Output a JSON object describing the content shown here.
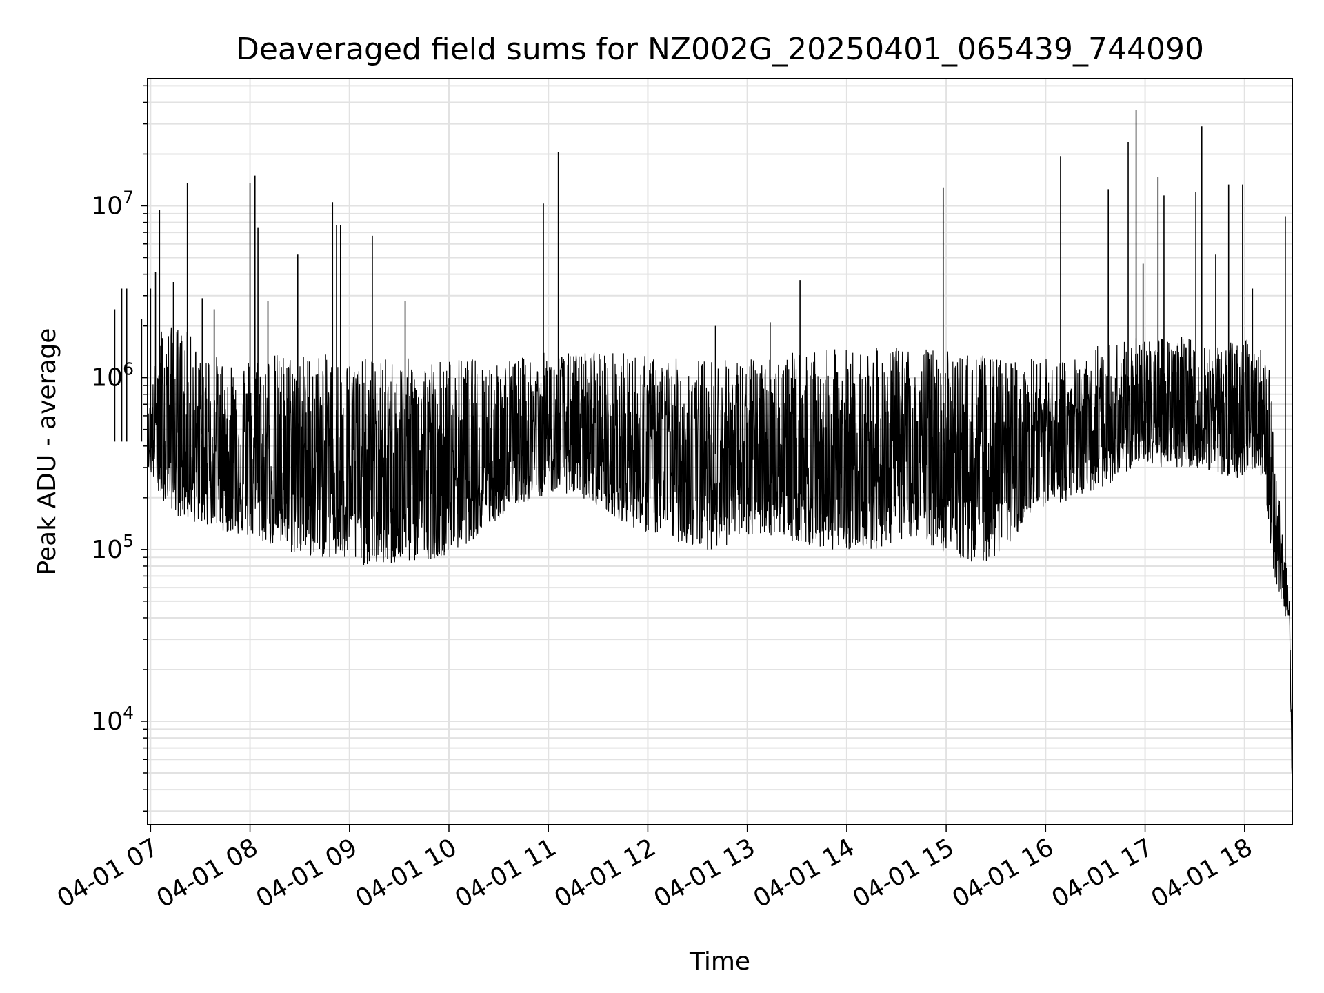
{
  "chart_data": {
    "type": "line",
    "title": "Deaveraged field sums for NZ002G_20250401_065439_744090",
    "xlabel": "Time",
    "ylabel": "Peak ADU - average",
    "yscale": "log",
    "ylim": [
      2500,
      55000000
    ],
    "xlim": [
      "2025-04-01 06:58",
      "2025-04-01 18:29"
    ],
    "x_ticks": [
      "04-01 07",
      "04-01 08",
      "04-01 09",
      "04-01 10",
      "04-01 11",
      "04-01 12",
      "04-01 13",
      "04-01 14",
      "04-01 15",
      "04-01 16",
      "04-01 17",
      "04-01 18"
    ],
    "y_ticks": [
      {
        "base": "10",
        "exp": "4",
        "value": 10000
      },
      {
        "base": "10",
        "exp": "5",
        "value": 100000
      },
      {
        "base": "10",
        "exp": "6",
        "value": 1000000
      },
      {
        "base": "10",
        "exp": "7",
        "value": 10000000
      }
    ],
    "grid": true,
    "legend": "none",
    "line_color": "#000000",
    "series": [
      {
        "x_hours": [
          6.97,
          7.1,
          7.3,
          7.5,
          7.7,
          7.9,
          8.1,
          8.3,
          8.5,
          8.7,
          8.9,
          9.1,
          9.3,
          9.5,
          9.7,
          9.9,
          10.1,
          10.3,
          10.5,
          10.7,
          10.9,
          11.1,
          11.3,
          11.5,
          11.7,
          11.9,
          12.1,
          12.3,
          12.5,
          12.7,
          12.9,
          13.1,
          13.3,
          13.5,
          13.7,
          13.9,
          14.1,
          14.3,
          14.5,
          14.7,
          14.9,
          15.1,
          15.3,
          15.5,
          15.7,
          15.9,
          16.1,
          16.3,
          16.5,
          16.7,
          16.9,
          17.1,
          17.3,
          17.5,
          17.7,
          17.9,
          18.1,
          18.2,
          18.25,
          18.3,
          18.35,
          18.4,
          18.45,
          18.48
        ],
        "upper": [
          600000,
          2000000,
          2000000,
          1600000,
          1300000,
          1300000,
          1400000,
          1400000,
          1400000,
          1400000,
          1300000,
          1300000,
          1300000,
          1300000,
          1300000,
          1300000,
          1300000,
          1300000,
          1300000,
          1300000,
          1400000,
          1400000,
          1400000,
          1500000,
          1400000,
          1400000,
          1300000,
          1300000,
          1300000,
          1300000,
          1300000,
          1300000,
          1400000,
          1400000,
          1400000,
          1500000,
          1500000,
          1500000,
          1500000,
          1500000,
          1500000,
          1400000,
          1400000,
          1300000,
          1300000,
          1300000,
          1300000,
          1300000,
          1600000,
          1600000,
          1700000,
          1700000,
          1800000,
          1700000,
          1600000,
          1600000,
          1700000,
          1500000,
          1100000,
          500000,
          200000,
          90000,
          70000,
          5000
        ],
        "lower": [
          300000,
          200000,
          150000,
          140000,
          130000,
          120000,
          110000,
          100000,
          90000,
          90000,
          85000,
          80000,
          80000,
          80000,
          85000,
          90000,
          100000,
          120000,
          150000,
          180000,
          200000,
          220000,
          200000,
          180000,
          150000,
          130000,
          120000,
          110000,
          100000,
          100000,
          110000,
          120000,
          120000,
          110000,
          100000,
          100000,
          100000,
          100000,
          110000,
          120000,
          100000,
          90000,
          80000,
          90000,
          120000,
          160000,
          180000,
          200000,
          220000,
          250000,
          300000,
          300000,
          300000,
          300000,
          280000,
          250000,
          300000,
          250000,
          120000,
          70000,
          50000,
          40000,
          40000,
          3000
        ],
        "spikes": [
          {
            "x": 7.11,
            "y": 2500000
          },
          {
            "x": 7.18,
            "y": 3300000
          },
          {
            "x": 7.23,
            "y": 3300000
          },
          {
            "x": 7.38,
            "y": 2200000
          },
          {
            "x": 7.47,
            "y": 3300000
          },
          {
            "x": 7.52,
            "y": 4100000
          },
          {
            "x": 7.56,
            "y": 9500000
          },
          {
            "x": 7.7,
            "y": 3600000
          },
          {
            "x": 7.84,
            "y": 13500000
          },
          {
            "x": 7.99,
            "y": 2900000
          },
          {
            "x": 8.11,
            "y": 2500000
          },
          {
            "x": 8.47,
            "y": 13500000
          },
          {
            "x": 8.52,
            "y": 15000000
          },
          {
            "x": 8.55,
            "y": 7500000
          },
          {
            "x": 8.65,
            "y": 2800000
          },
          {
            "x": 8.95,
            "y": 5200000
          },
          {
            "x": 9.3,
            "y": 10500000
          },
          {
            "x": 9.34,
            "y": 7700000
          },
          {
            "x": 9.38,
            "y": 7700000
          },
          {
            "x": 9.7,
            "y": 6700000
          },
          {
            "x": 10.03,
            "y": 2800000
          },
          {
            "x": 11.42,
            "y": 10300000
          },
          {
            "x": 11.57,
            "y": 20500000
          },
          {
            "x": 13.15,
            "y": 2000000
          },
          {
            "x": 13.7,
            "y": 2100000
          },
          {
            "x": 14.0,
            "y": 3700000
          },
          {
            "x": 15.44,
            "y": 12800000
          },
          {
            "x": 16.62,
            "y": 19500000
          },
          {
            "x": 17.1,
            "y": 12500000
          },
          {
            "x": 17.3,
            "y": 23500000
          },
          {
            "x": 17.38,
            "y": 36000000
          },
          {
            "x": 17.45,
            "y": 4600000
          },
          {
            "x": 17.6,
            "y": 14800000
          },
          {
            "x": 17.66,
            "y": 11500000
          },
          {
            "x": 17.98,
            "y": 12000000
          },
          {
            "x": 18.04,
            "y": 29000000
          },
          {
            "x": 18.18,
            "y": 5200000
          },
          {
            "x": 18.31,
            "y": 13300000
          },
          {
            "x": 18.45,
            "y": 13300000
          },
          {
            "x": 18.55,
            "y": 3300000
          },
          {
            "x": 18.88,
            "y": 8700000
          }
        ]
      }
    ]
  }
}
